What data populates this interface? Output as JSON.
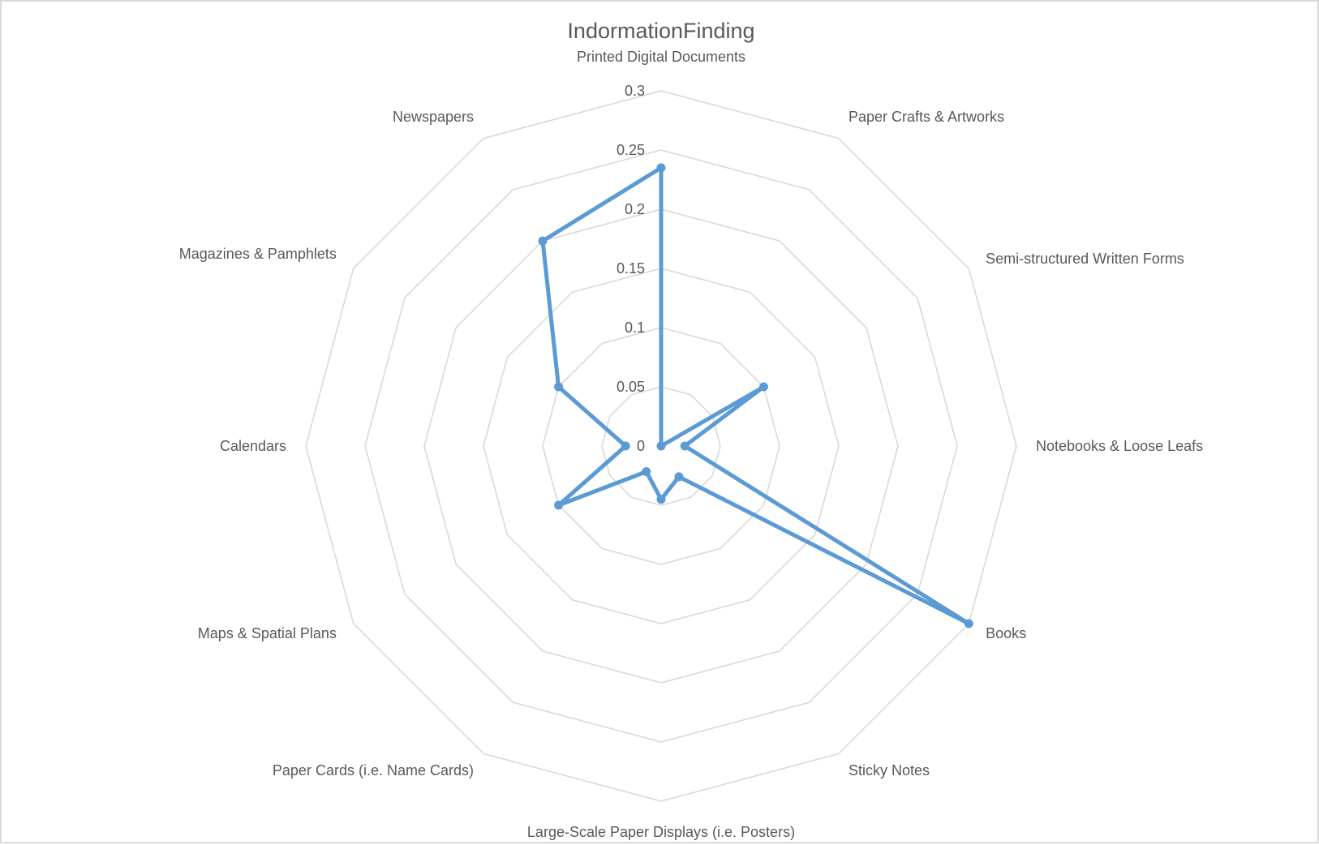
{
  "chart_data": {
    "type": "radar",
    "title": "IndormationFinding",
    "categories": [
      "Printed Digital Documents",
      "Paper Crafts & Artworks",
      "Semi-structured Written Forms",
      "Notebooks & Loose Leafs",
      "Books",
      "Sticky Notes",
      "Large-Scale Paper Displays (i.e. Posters)",
      "Paper Cards (i.e. Name Cards)",
      "Maps & Spatial Plans",
      "Calendars",
      "Magazines & Pamphlets",
      "Newspapers"
    ],
    "series": [
      {
        "values": [
          0.235,
          0.0,
          0.1,
          0.02,
          0.3,
          0.03,
          0.045,
          0.025,
          0.1,
          0.03,
          0.1,
          0.2
        ],
        "color": "#5b9bd5"
      }
    ],
    "ticks": [
      "0",
      "0.05",
      "0.1",
      "0.15",
      "0.2",
      "0.25",
      "0.3"
    ],
    "rmax": 0.3,
    "grid": true,
    "legend": "none",
    "gridColor": "#d9d9d9",
    "textColor": "#595959"
  }
}
